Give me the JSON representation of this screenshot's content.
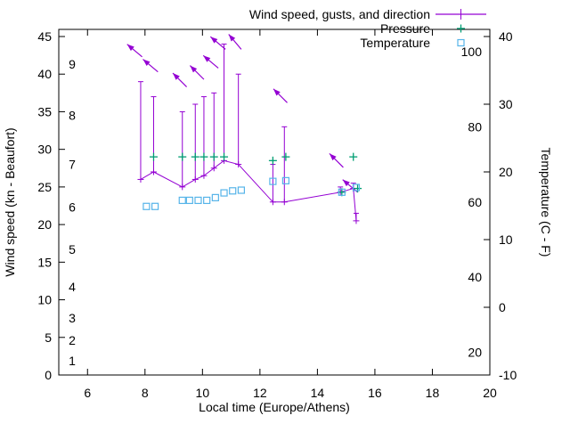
{
  "chart_data": {
    "type": "line",
    "title": "",
    "legend": [
      {
        "label": "Wind speed, gusts, and direction",
        "color": "#9400d3",
        "marker": "errorbar-line-cross",
        "series": "wind"
      },
      {
        "label": "Pressure",
        "color": "#009e73",
        "marker": "plus",
        "series": "pressure"
      },
      {
        "label": "Temperature",
        "color": "#56b4e9",
        "marker": "open-square",
        "series": "temperature"
      }
    ],
    "axes": {
      "x": {
        "label": "Local time (Europe/Athens)",
        "min": 5,
        "max": 20,
        "ticks": [
          6,
          8,
          10,
          12,
          14,
          16,
          18,
          20
        ]
      },
      "y_left": {
        "label": "Wind speed (kn - Beaufort)",
        "min": 0,
        "max": 45,
        "ticks": [
          0,
          5,
          10,
          15,
          20,
          25,
          30,
          35,
          40,
          45
        ],
        "beaufort_scale": [
          {
            "b": 1,
            "kn": 1.9
          },
          {
            "b": 2,
            "kn": 4.6
          },
          {
            "b": 3,
            "kn": 7.6
          },
          {
            "b": 4,
            "kn": 11.7
          },
          {
            "b": 5,
            "kn": 16.7
          },
          {
            "b": 6,
            "kn": 22.3
          },
          {
            "b": 7,
            "kn": 28.0
          },
          {
            "b": 8,
            "kn": 34.5
          },
          {
            "b": 9,
            "kn": 41.3
          }
        ]
      },
      "y_right": {
        "label": "Temperature (C - F)",
        "min": -10,
        "max": 40,
        "ticks": [
          -10,
          0,
          10,
          20,
          30,
          40
        ],
        "fahrenheit_ticks": [
          20,
          40,
          60,
          80,
          100
        ]
      }
    },
    "series": {
      "wind": {
        "x": [
          7.85,
          8.3,
          9.3,
          9.75,
          10.05,
          10.4,
          10.75,
          11.25,
          12.45,
          12.85,
          14.8,
          15.25,
          15.35
        ],
        "speed_kn": [
          26,
          27,
          25,
          26,
          26.5,
          27.5,
          28.5,
          28,
          23,
          23,
          24.3,
          24.8,
          20.5
        ],
        "gust_kn": [
          39,
          37,
          35,
          36,
          37,
          37.5,
          44,
          40,
          28,
          33,
          25,
          25.5,
          21.5
        ]
      },
      "direction_arrows": [
        {
          "x": 7.9,
          "kn": 42.3,
          "angle_deg": 140
        },
        {
          "x": 8.45,
          "kn": 40.3,
          "angle_deg": 140
        },
        {
          "x": 9.45,
          "kn": 38.3,
          "angle_deg": 135
        },
        {
          "x": 10.05,
          "kn": 39.3,
          "angle_deg": 135
        },
        {
          "x": 10.55,
          "kn": 40.8,
          "angle_deg": 140
        },
        {
          "x": 10.8,
          "kn": 43.3,
          "angle_deg": 140
        },
        {
          "x": 11.35,
          "kn": 43.3,
          "angle_deg": 130
        },
        {
          "x": 12.95,
          "kn": 36.2,
          "angle_deg": 135
        },
        {
          "x": 14.9,
          "kn": 27.6,
          "angle_deg": 135
        },
        {
          "x": 15.4,
          "kn": 24.3,
          "angle_deg": 140
        }
      ],
      "pressure": {
        "x": [
          8.3,
          9.3,
          9.75,
          10.05,
          10.4,
          10.75,
          12.45,
          12.9,
          14.85,
          15.25,
          15.4
        ],
        "kn_scale": [
          29,
          29,
          29,
          29,
          29,
          29,
          28.5,
          29,
          24.3,
          29,
          24.8
        ]
      },
      "temperature": {
        "x": [
          8.05,
          8.35,
          9.3,
          9.55,
          9.85,
          10.15,
          10.45,
          10.75,
          11.05,
          11.35,
          12.45,
          12.9,
          14.85,
          15.35
        ],
        "celsius": [
          14.9,
          14.9,
          15.8,
          15.8,
          15.8,
          15.8,
          16.2,
          16.9,
          17.2,
          17.3,
          18.6,
          18.7,
          17.0,
          17.7
        ]
      }
    }
  }
}
